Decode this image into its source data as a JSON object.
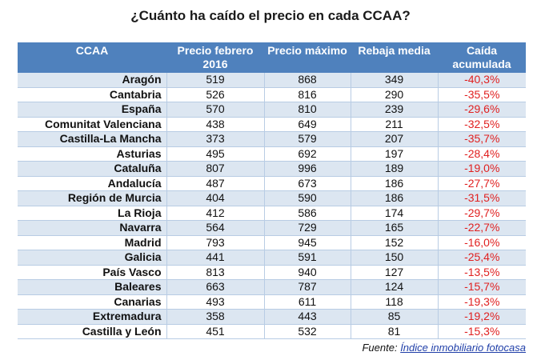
{
  "title": "¿Cuánto ha caído el precio en cada CCAA?",
  "headers": [
    "CCAA",
    "Precio febrero 2016",
    "Precio máximo",
    "Rebaja media",
    "Caída acumulada"
  ],
  "rows": [
    [
      "Aragón",
      "519",
      "868",
      "349",
      "-40,3%"
    ],
    [
      "Cantabria",
      "526",
      "816",
      "290",
      "-35,5%"
    ],
    [
      "España",
      "570",
      "810",
      "239",
      "-29,6%"
    ],
    [
      "Comunitat Valenciana",
      "438",
      "649",
      "211",
      "-32,5%"
    ],
    [
      "Castilla-La Mancha",
      "373",
      "579",
      "207",
      "-35,7%"
    ],
    [
      "Asturias",
      "495",
      "692",
      "197",
      "-28,4%"
    ],
    [
      "Cataluña",
      "807",
      "996",
      "189",
      "-19,0%"
    ],
    [
      "Andalucía",
      "487",
      "673",
      "186",
      "-27,7%"
    ],
    [
      "Región de Murcia",
      "404",
      "590",
      "186",
      "-31,5%"
    ],
    [
      "La Rioja",
      "412",
      "586",
      "174",
      "-29,7%"
    ],
    [
      "Navarra",
      "564",
      "729",
      "165",
      "-22,7%"
    ],
    [
      "Madrid",
      "793",
      "945",
      "152",
      "-16,0%"
    ],
    [
      "Galicia",
      "441",
      "591",
      "150",
      "-25,4%"
    ],
    [
      "País Vasco",
      "813",
      "940",
      "127",
      "-13,5%"
    ],
    [
      "Baleares",
      "663",
      "787",
      "124",
      "-15,7%"
    ],
    [
      "Canarias",
      "493",
      "611",
      "118",
      "-19,3%"
    ],
    [
      "Extremadura",
      "358",
      "443",
      "85",
      "-19,2%"
    ],
    [
      "Castilla y León",
      "451",
      "532",
      "81",
      "-15,3%"
    ]
  ],
  "source": {
    "label": "Fuente:",
    "link": "Índice inmobiliario fotocasa"
  },
  "colors": {
    "header": "#4f81bd",
    "alt_row": "#dce6f1",
    "negative": "#e02020",
    "link": "#1f3ea8"
  }
}
